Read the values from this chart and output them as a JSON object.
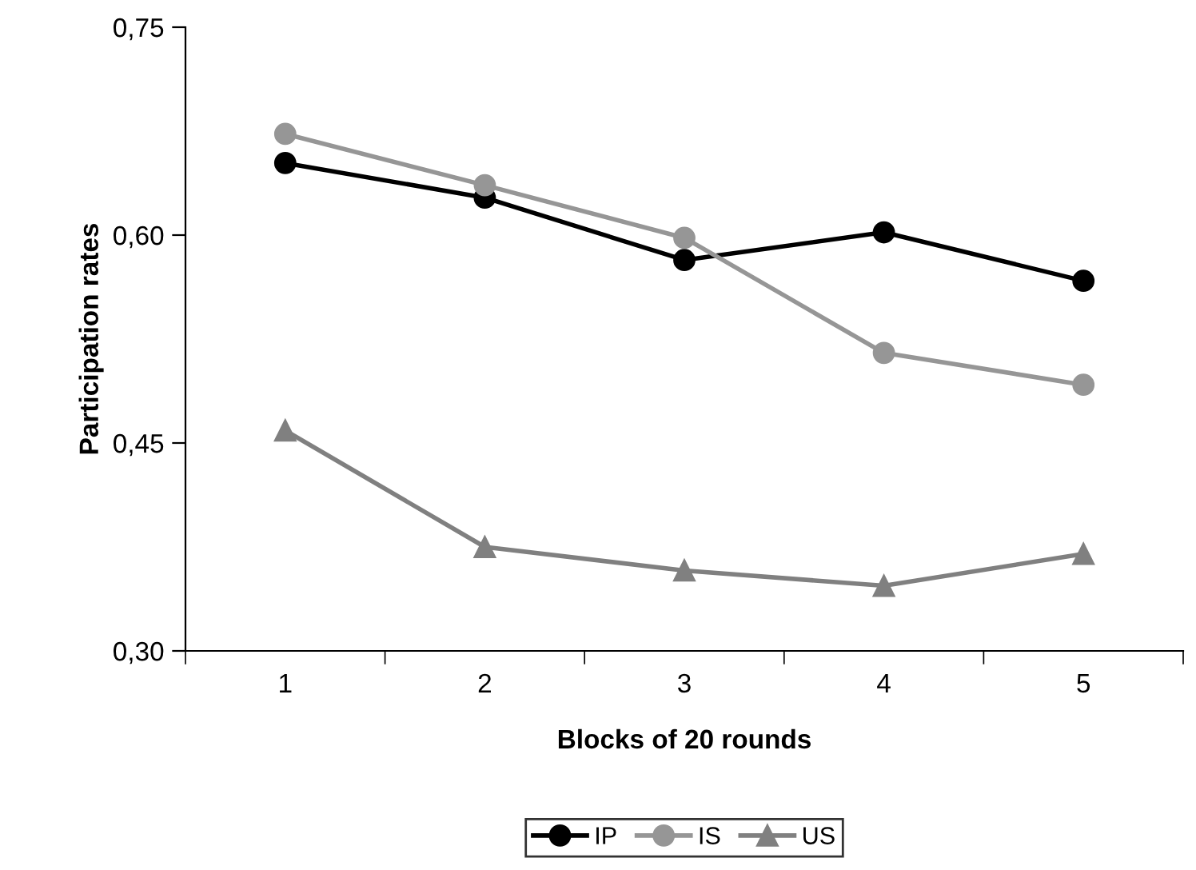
{
  "chart_data": {
    "type": "line",
    "xlabel": "Blocks of 20 rounds",
    "ylabel": "Participation rates",
    "categories": [
      "1",
      "2",
      "3",
      "4",
      "5"
    ],
    "series": [
      {
        "name": "IP",
        "color": "#000000",
        "marker": "circle",
        "values": [
          0.652,
          0.627,
          0.582,
          0.602,
          0.567
        ]
      },
      {
        "name": "IS",
        "color": "#969696",
        "marker": "circle",
        "values": [
          0.673,
          0.636,
          0.598,
          0.515,
          0.492
        ]
      },
      {
        "name": "US",
        "color": "#808080",
        "marker": "triangle",
        "values": [
          0.459,
          0.375,
          0.358,
          0.347,
          0.37
        ]
      }
    ],
    "ylim": [
      0.3,
      0.75
    ],
    "yticks": [
      {
        "value": 0.3,
        "label": "0,30"
      },
      {
        "value": 0.45,
        "label": "0,45"
      },
      {
        "value": 0.6,
        "label": "0,60"
      },
      {
        "value": 0.75,
        "label": "0,75"
      }
    ],
    "grid": false,
    "legend": "bottom",
    "line_style": "solid"
  }
}
